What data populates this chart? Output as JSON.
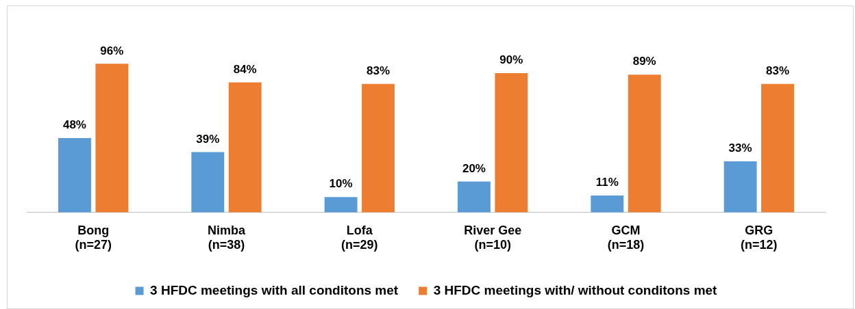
{
  "chart_data": {
    "type": "bar",
    "categories": [
      "Bong\n(n=27)",
      "Nimba\n(n=38)",
      "Lofa\n(n=29)",
      "River Gee\n(n=10)",
      "GCM\n(n=18)",
      "GRG\n(n=12)"
    ],
    "series": [
      {
        "name": "3 HFDC meetings with all conditons met",
        "color": "#5b9bd5",
        "values": [
          48,
          39,
          10,
          20,
          11,
          33
        ],
        "value_labels": [
          "48%",
          "39%",
          "10%",
          "20%",
          "11%",
          "33%"
        ]
      },
      {
        "name": "3 HFDC meetings with/ without conditons met",
        "color": "#ed7d31",
        "values": [
          96,
          84,
          83,
          90,
          89,
          83
        ],
        "value_labels": [
          "96%",
          "84%",
          "83%",
          "90%",
          "89%",
          "83%"
        ]
      }
    ],
    "legend": "bottom",
    "grid": false
  }
}
